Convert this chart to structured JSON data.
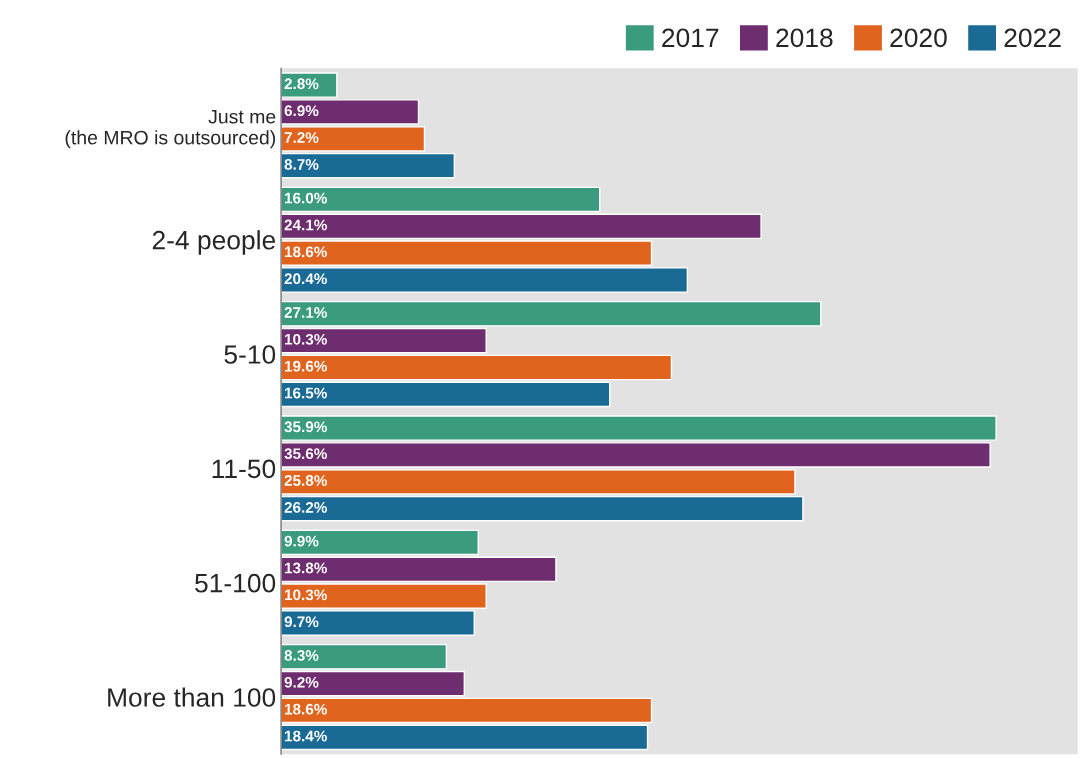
{
  "chart_data": {
    "type": "bar",
    "orientation": "horizontal",
    "categories": [
      "Just me\n(the MRO is outsourced)",
      "2-4 people",
      "5-10",
      "11-50",
      "51-100",
      "More than 100"
    ],
    "series": [
      {
        "name": "2017",
        "color": "#3a9b7f",
        "values": [
          2.8,
          16.0,
          27.1,
          35.9,
          9.9,
          8.3
        ],
        "value_labels": [
          "2.8%",
          "16.0%",
          "27.1%",
          "35.9%",
          "9.9%",
          "8.3%"
        ]
      },
      {
        "name": "2018",
        "color": "#6e2d6e",
        "values": [
          6.9,
          24.1,
          10.3,
          35.6,
          13.8,
          9.2
        ],
        "value_labels": [
          "6.9%",
          "24.1%",
          "10.3%",
          "35.6%",
          "13.8%",
          "9.2%"
        ]
      },
      {
        "name": "2020",
        "color": "#e0641e",
        "values": [
          7.2,
          18.6,
          19.6,
          25.8,
          10.3,
          18.6
        ],
        "value_labels": [
          "7.2%",
          "18.6%",
          "19.6%",
          "25.8%",
          "10.3%",
          "18.6%"
        ]
      },
      {
        "name": "2022",
        "color": "#1a6a96",
        "values": [
          8.7,
          20.4,
          16.5,
          26.2,
          9.7,
          18.4
        ],
        "value_labels": [
          "8.7%",
          "20.4%",
          "16.5%",
          "26.2%",
          "9.7%",
          "18.4%"
        ]
      }
    ],
    "xlim": [
      0,
      40
    ],
    "tick_labels": "y",
    "grid": false,
    "legend": "top right"
  }
}
